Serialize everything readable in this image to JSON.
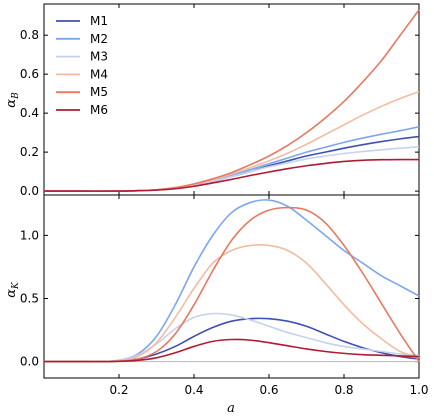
{
  "chart_data": [
    {
      "type": "line",
      "ylabel": "αB",
      "ylabel_main": "α",
      "ylabel_sub": "B",
      "xlim": [
        0.0,
        1.0
      ],
      "ylim": [
        -0.02,
        0.96
      ],
      "yticks": [
        0.0,
        0.2,
        0.4,
        0.6,
        0.8
      ],
      "ytick_labels": [
        "0.0",
        "0.2",
        "0.4",
        "0.6",
        "0.8"
      ],
      "xticks": [
        0.2,
        0.4,
        0.6,
        0.8,
        1.0
      ],
      "grid": false,
      "legend": "top-left",
      "x": [
        0.0,
        0.1,
        0.2,
        0.25,
        0.3,
        0.35,
        0.4,
        0.45,
        0.5,
        0.55,
        0.6,
        0.65,
        0.7,
        0.75,
        0.8,
        0.85,
        0.9,
        0.95,
        1.0
      ],
      "series": [
        {
          "name": "M1",
          "color": "#3f4fb5",
          "values": [
            0.0,
            0.0,
            0.0,
            0.002,
            0.006,
            0.015,
            0.03,
            0.05,
            0.075,
            0.1,
            0.13,
            0.155,
            0.18,
            0.2,
            0.22,
            0.238,
            0.254,
            0.268,
            0.28
          ]
        },
        {
          "name": "M2",
          "color": "#7ea6ef",
          "values": [
            0.0,
            0.0,
            0.0,
            0.002,
            0.006,
            0.015,
            0.032,
            0.055,
            0.08,
            0.11,
            0.14,
            0.17,
            0.2,
            0.225,
            0.25,
            0.272,
            0.292,
            0.31,
            0.33
          ]
        },
        {
          "name": "M3",
          "color": "#c4d3ee",
          "values": [
            0.0,
            0.0,
            0.0,
            0.002,
            0.006,
            0.015,
            0.03,
            0.05,
            0.075,
            0.1,
            0.125,
            0.145,
            0.165,
            0.18,
            0.193,
            0.203,
            0.212,
            0.22,
            0.228
          ]
        },
        {
          "name": "M4",
          "color": "#f2bca2",
          "values": [
            0.0,
            0.0,
            0.0,
            0.002,
            0.007,
            0.017,
            0.035,
            0.058,
            0.088,
            0.12,
            0.155,
            0.195,
            0.24,
            0.29,
            0.34,
            0.39,
            0.435,
            0.475,
            0.51
          ]
        },
        {
          "name": "M5",
          "color": "#e8785f",
          "values": [
            0.0,
            0.0,
            0.0,
            0.002,
            0.007,
            0.018,
            0.037,
            0.063,
            0.095,
            0.135,
            0.18,
            0.235,
            0.3,
            0.375,
            0.46,
            0.56,
            0.67,
            0.8,
            0.93
          ]
        },
        {
          "name": "M6",
          "color": "#b11a35",
          "values": [
            0.0,
            0.0,
            0.0,
            0.002,
            0.005,
            0.012,
            0.025,
            0.042,
            0.06,
            0.08,
            0.098,
            0.115,
            0.13,
            0.142,
            0.152,
            0.158,
            0.161,
            0.162,
            0.162
          ]
        }
      ]
    },
    {
      "type": "line",
      "xlabel": "a",
      "ylabel": "αK",
      "ylabel_main": "α",
      "ylabel_sub": "K",
      "xlim": [
        0.0,
        1.0
      ],
      "ylim": [
        -0.13,
        1.32
      ],
      "yticks": [
        0.0,
        0.5,
        1.0
      ],
      "ytick_labels": [
        "0.0",
        "0.5",
        "1.0"
      ],
      "xticks": [
        0.2,
        0.4,
        0.6,
        0.8,
        1.0
      ],
      "xtick_labels": [
        "0.2",
        "0.4",
        "0.6",
        "0.8",
        "1.0"
      ],
      "grid": false,
      "reference_line": 0.0,
      "x": [
        0.0,
        0.1,
        0.15,
        0.2,
        0.25,
        0.3,
        0.35,
        0.4,
        0.45,
        0.5,
        0.55,
        0.6,
        0.65,
        0.7,
        0.75,
        0.8,
        0.85,
        0.9,
        0.95,
        1.0
      ],
      "series": [
        {
          "name": "M1",
          "color": "#3f4fb5",
          "values": [
            0.0,
            0.0,
            0.0,
            0.005,
            0.02,
            0.06,
            0.12,
            0.2,
            0.27,
            0.32,
            0.34,
            0.34,
            0.32,
            0.28,
            0.22,
            0.16,
            0.11,
            0.07,
            0.04,
            0.02
          ]
        },
        {
          "name": "M2",
          "color": "#7ea6ef",
          "values": [
            0.0,
            0.0,
            0.0,
            0.01,
            0.06,
            0.2,
            0.45,
            0.75,
            1.0,
            1.18,
            1.26,
            1.28,
            1.23,
            1.12,
            1.0,
            0.88,
            0.78,
            0.68,
            0.6,
            0.52
          ]
        },
        {
          "name": "M3",
          "color": "#c4d3ee",
          "values": [
            0.0,
            0.0,
            0.0,
            0.008,
            0.05,
            0.14,
            0.26,
            0.35,
            0.38,
            0.37,
            0.33,
            0.28,
            0.23,
            0.19,
            0.15,
            0.12,
            0.1,
            0.08,
            0.06,
            0.05
          ]
        },
        {
          "name": "M4",
          "color": "#f2bca2",
          "values": [
            0.0,
            0.0,
            0.0,
            0.005,
            0.04,
            0.15,
            0.35,
            0.58,
            0.78,
            0.88,
            0.92,
            0.92,
            0.88,
            0.78,
            0.62,
            0.45,
            0.3,
            0.18,
            0.08,
            0.03
          ]
        },
        {
          "name": "M5",
          "color": "#e8785f",
          "values": [
            0.0,
            0.0,
            0.0,
            0.003,
            0.02,
            0.08,
            0.22,
            0.45,
            0.72,
            0.96,
            1.12,
            1.2,
            1.22,
            1.2,
            1.1,
            0.92,
            0.7,
            0.46,
            0.22,
            0.0
          ]
        },
        {
          "name": "M6",
          "color": "#b11a35",
          "values": [
            0.0,
            0.0,
            0.0,
            0.002,
            0.01,
            0.03,
            0.07,
            0.12,
            0.16,
            0.175,
            0.17,
            0.15,
            0.125,
            0.1,
            0.08,
            0.065,
            0.055,
            0.05,
            0.045,
            0.04
          ]
        }
      ]
    }
  ]
}
